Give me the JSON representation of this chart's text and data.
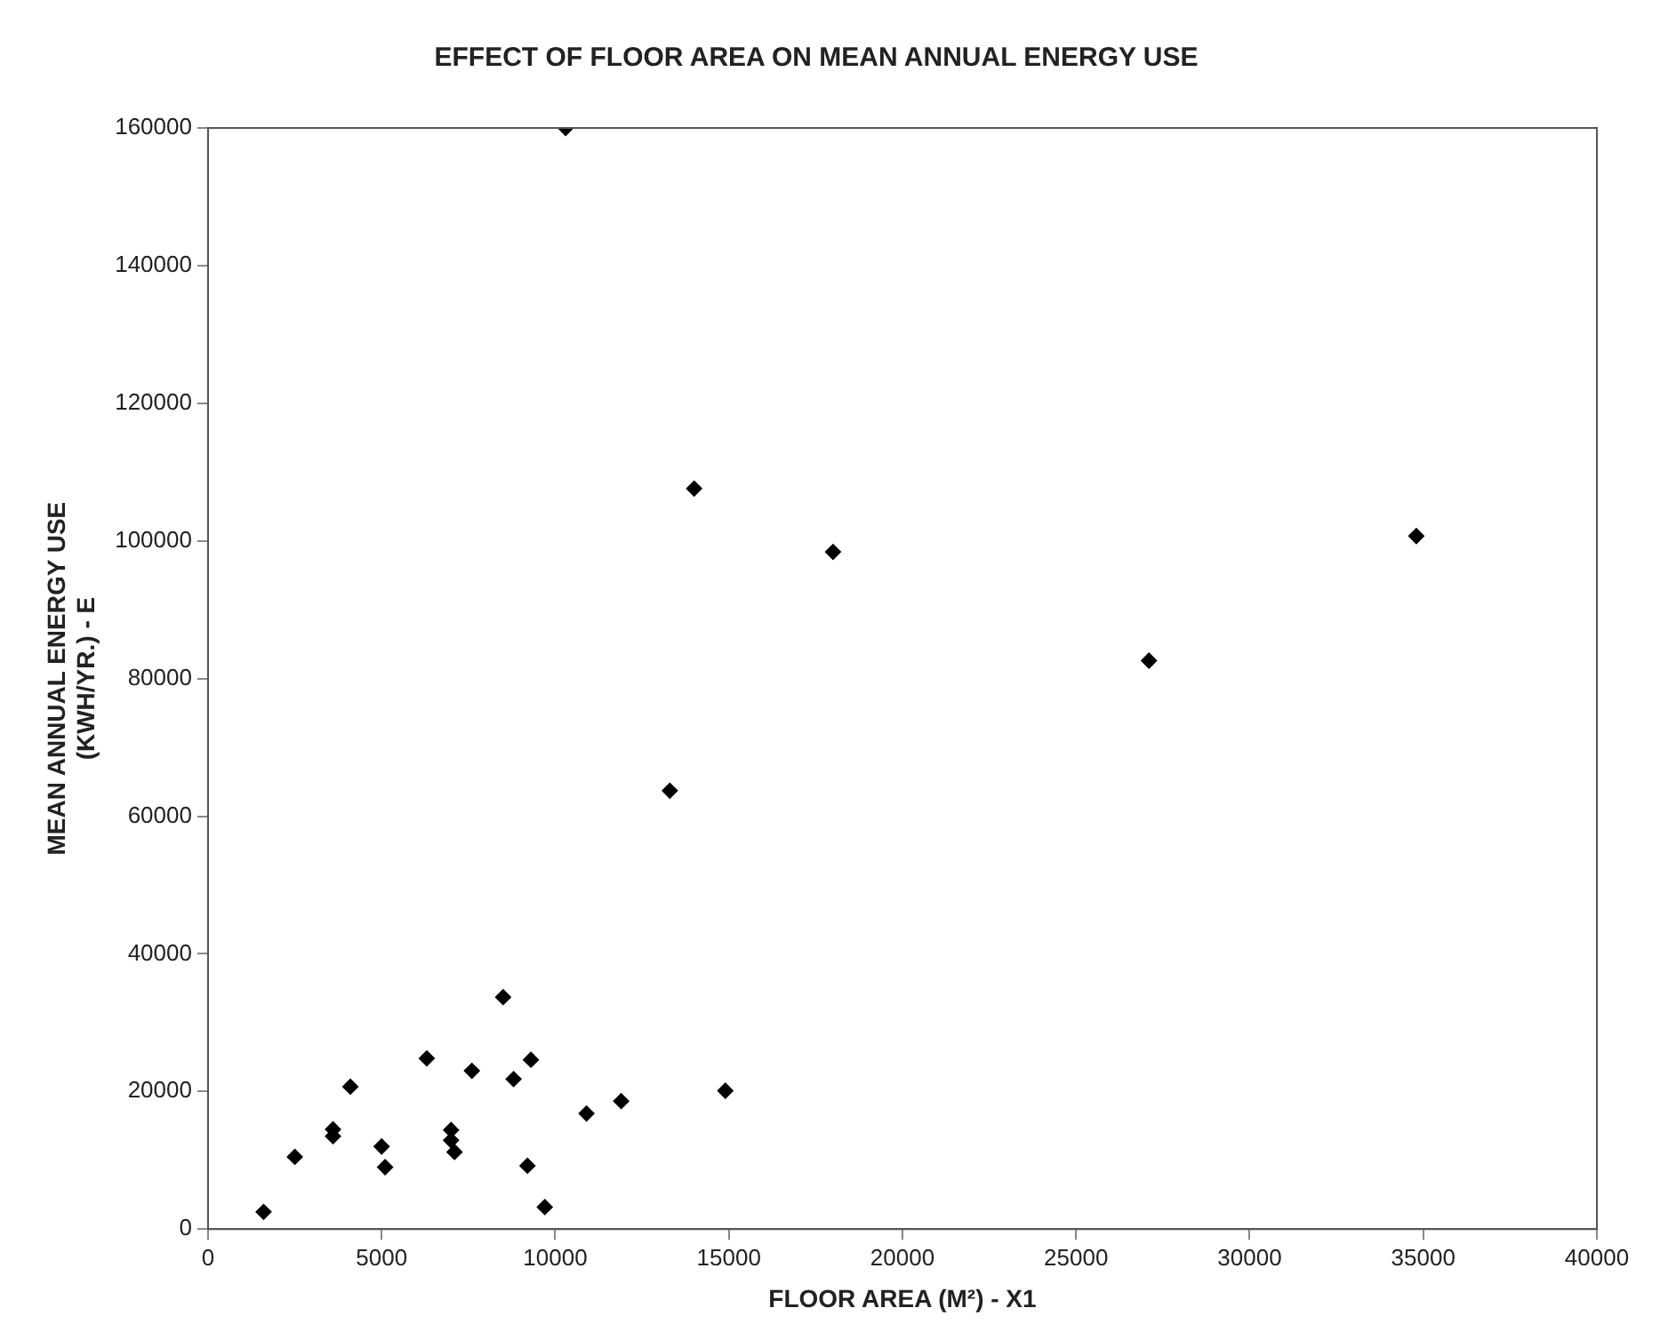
{
  "chart_data": {
    "type": "scatter",
    "title": "EFFECT OF FLOOR AREA ON MEAN ANNUAL ENERGY USE",
    "xlabel": "FLOOR AREA (M²) - X1",
    "ylabel": "MEAN ANNUAL ENERGY USE\n(KWH/YR.) - E",
    "x": [
      1600,
      2500,
      3600,
      3600,
      4100,
      5000,
      5100,
      6300,
      7000,
      7000,
      7100,
      7600,
      8500,
      8800,
      9300,
      9200,
      9700,
      10900,
      11900,
      14900,
      10300,
      14000,
      18000,
      34800,
      27100,
      13300
    ],
    "series": [
      {
        "color": "#000000",
        "values": [
          2500,
          10500,
          14500,
          13500,
          20700,
          12000,
          9000,
          24800,
          14400,
          12900,
          11200,
          23000,
          33700,
          21800,
          24600,
          9200,
          3200,
          16800,
          18600,
          20100,
          160000,
          107600,
          98400,
          100700,
          82600,
          63700
        ]
      }
    ],
    "xlim": [
      0,
      40000
    ],
    "xticks": [
      0,
      5000,
      10000,
      15000,
      20000,
      25000,
      30000,
      35000,
      40000
    ],
    "ylim": [
      0,
      160000
    ],
    "yticks": [
      0,
      20000,
      40000,
      60000,
      80000,
      100000,
      120000,
      140000,
      160000
    ],
    "grid": false,
    "legend": false,
    "marker": "diamond"
  }
}
